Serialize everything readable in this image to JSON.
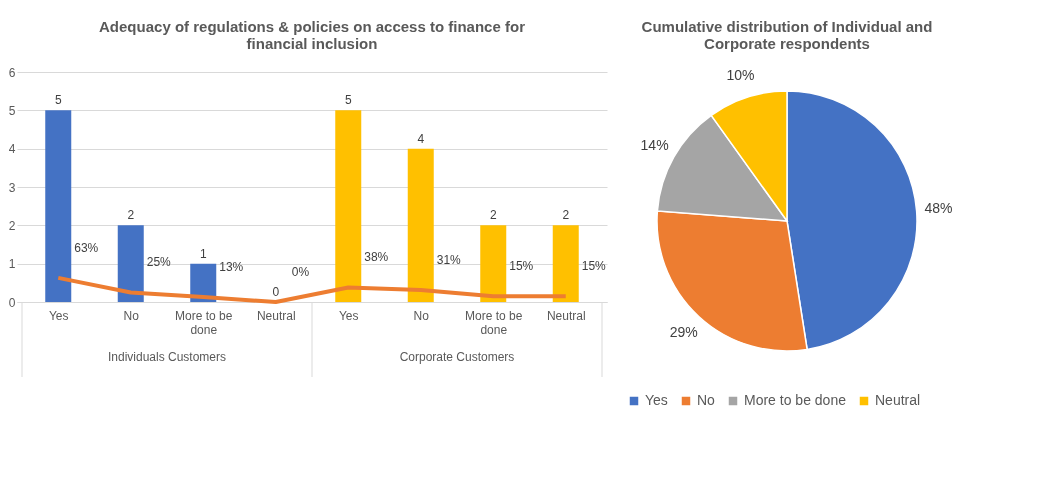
{
  "chart_data": [
    {
      "type": "bar",
      "title": "Adequacy of regulations & policies on access to finance for financial inclusion",
      "categories": [
        "Yes",
        "No",
        "More to be done",
        "Neutral",
        "Yes",
        "No",
        "More to be done",
        "Neutral"
      ],
      "series": [
        {
          "type": "bar",
          "values": [
            5,
            2,
            1,
            0,
            5,
            4,
            2,
            2
          ],
          "colors": [
            "#4472c4",
            "#4472c4",
            "#4472c4",
            "#4472c4",
            "#ffc000",
            "#ffc000",
            "#ffc000",
            "#ffc000"
          ]
        },
        {
          "type": "line",
          "color": "#ed7d31",
          "values": [
            0.63,
            0.25,
            0.13,
            0,
            0.38,
            0.31,
            0.15,
            0.15
          ],
          "value_labels": [
            "63%",
            "25%",
            "13%",
            "0%",
            "38%",
            "31%",
            "15%",
            "15%"
          ]
        }
      ],
      "ylim": [
        0,
        6
      ],
      "yticks": [
        0,
        1,
        2,
        3,
        4,
        5,
        6
      ],
      "grid": "y",
      "data_labels": true,
      "annotations": [
        "Individuals Customers",
        "Corporate Customers"
      ]
    },
    {
      "type": "pie",
      "title": "Cumulative distribution of Individual and Corporate respondents",
      "categories": [
        "Yes",
        "No",
        "More to be done",
        "Neutral"
      ],
      "values": [
        48,
        29,
        14,
        10
      ],
      "colors": [
        "#4472c4",
        "#ed7d31",
        "#a5a5a5",
        "#ffc000"
      ],
      "value_labels": [
        "48%",
        "29%",
        "14%",
        "10%"
      ],
      "legend": "bottom"
    }
  ]
}
